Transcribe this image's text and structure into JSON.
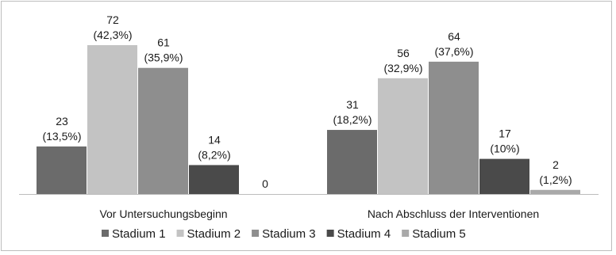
{
  "chart_data": {
    "type": "bar",
    "title": "",
    "xlabel": "",
    "ylabel": "",
    "ylim": [
      0,
      72
    ],
    "grid": false,
    "legend_position": "bottom",
    "categories": [
      "Vor Untersuchungsbeginn",
      "Nach Abschluss der Interventionen"
    ],
    "series": [
      {
        "name": "Stadium 1",
        "color": "#6b6b6b",
        "values": [
          23,
          31
        ],
        "labels": [
          [
            "23",
            "(13,5%)"
          ],
          [
            "31",
            "(18,2%)"
          ]
        ]
      },
      {
        "name": "Stadium 2",
        "color": "#c3c3c3",
        "values": [
          72,
          56
        ],
        "labels": [
          [
            "72",
            "(42,3%)"
          ],
          [
            "56",
            "(32,9%)"
          ]
        ]
      },
      {
        "name": "Stadium 3",
        "color": "#8e8e8e",
        "values": [
          61,
          64
        ],
        "labels": [
          [
            "61",
            "(35,9%)"
          ],
          [
            "64",
            "(37,6%)"
          ]
        ]
      },
      {
        "name": "Stadium 4",
        "color": "#4a4a4a",
        "values": [
          14,
          17
        ],
        "labels": [
          [
            "14",
            "(8,2%)"
          ],
          [
            "17",
            "(10%)"
          ]
        ]
      },
      {
        "name": "Stadium 5",
        "color": "#a9a9a9",
        "values": [
          0,
          2
        ],
        "labels": [
          [
            "0"
          ],
          [
            "2",
            "(1,2%)"
          ]
        ]
      }
    ]
  }
}
